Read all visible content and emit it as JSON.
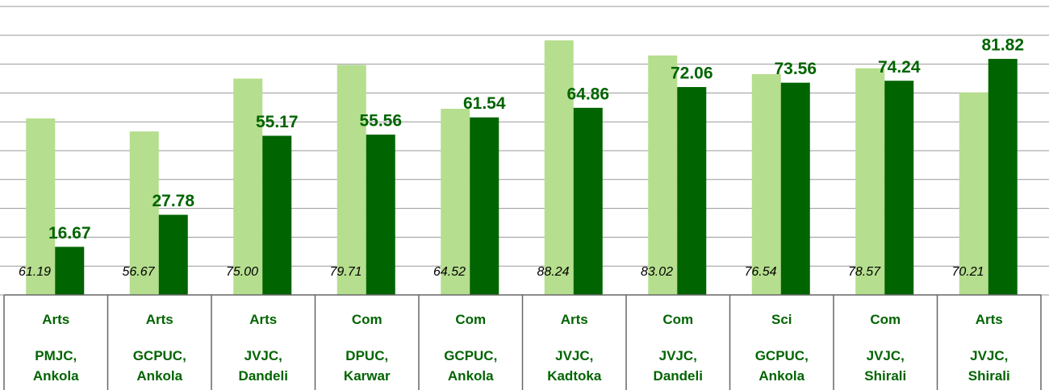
{
  "chart_data": {
    "type": "bar",
    "streams": [
      "Arts",
      "Arts",
      "Arts",
      "Com",
      "Com",
      "Arts",
      "Com",
      "Sci",
      "Com",
      "Arts"
    ],
    "categories": [
      "PMJC, Ankola",
      "GCPUC, Ankola",
      "JVJC, Dandeli",
      "DPUC, Karwar",
      "GCPUC, Ankola",
      "JVJC, Kadtoka",
      "JVJC, Dandeli",
      "GCPUC, Ankola",
      "JVJC, Shirali",
      "JVJC, Shirali"
    ],
    "series": [
      {
        "color": "#b5de8e",
        "values": [
          61.19,
          56.67,
          75.0,
          79.71,
          64.52,
          88.24,
          83.02,
          76.54,
          78.57,
          70.21
        ],
        "value_labels": [
          "61.19",
          "56.67",
          "75.00",
          "79.71",
          "64.52",
          "88.24",
          "83.02",
          "76.54",
          "78.57",
          "70.21"
        ]
      },
      {
        "color": "#006400",
        "values": [
          16.67,
          27.78,
          55.17,
          55.56,
          61.54,
          64.86,
          72.06,
          73.56,
          74.24,
          81.82
        ]
      }
    ],
    "ylim": [
      0,
      100
    ],
    "yticks": [
      0,
      10,
      20,
      30,
      40,
      50,
      60,
      70,
      80,
      90,
      100
    ],
    "grid": true
  }
}
